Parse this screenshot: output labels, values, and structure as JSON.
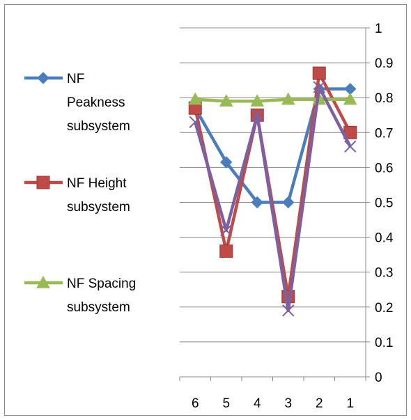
{
  "chart_data": {
    "type": "line",
    "x": [
      "6",
      "5",
      "4",
      "3",
      "2",
      "1"
    ],
    "ylim": [
      0,
      1
    ],
    "yticks": [
      "0",
      "0.1",
      "0.2",
      "0.3",
      "0.4",
      "0.5",
      "0.6",
      "0.7",
      "0.8",
      "0.9",
      "1"
    ],
    "y_axis_side": "right",
    "x_axis_reversed": true,
    "grid": "horizontal",
    "legend_position": "left",
    "series": [
      {
        "name": "NF Peakness subsystem",
        "legend_lines": [
          "NF",
          "Peakness",
          "subsystem"
        ],
        "color": "#4a7ebb",
        "marker": "diamond",
        "values": [
          0.77,
          0.615,
          0.5,
          0.5,
          0.825,
          0.825
        ]
      },
      {
        "name": "NF Height subsystem",
        "legend_lines": [
          "NF Height",
          "subsystem"
        ],
        "color": "#be4b48",
        "marker": "square",
        "values": [
          0.77,
          0.36,
          0.75,
          0.23,
          0.87,
          0.7
        ]
      },
      {
        "name": "NF Spacing subsystem",
        "legend_lines": [
          "NF Spacing",
          "subsystem"
        ],
        "color": "#98b954",
        "marker": "triangle",
        "values": [
          0.795,
          0.79,
          0.79,
          0.795,
          0.795,
          0.795
        ]
      },
      {
        "name": "",
        "legend_lines": [],
        "color": "#7d60a0",
        "marker": "x",
        "values": [
          0.73,
          0.42,
          0.75,
          0.19,
          0.83,
          0.66
        ]
      }
    ]
  }
}
